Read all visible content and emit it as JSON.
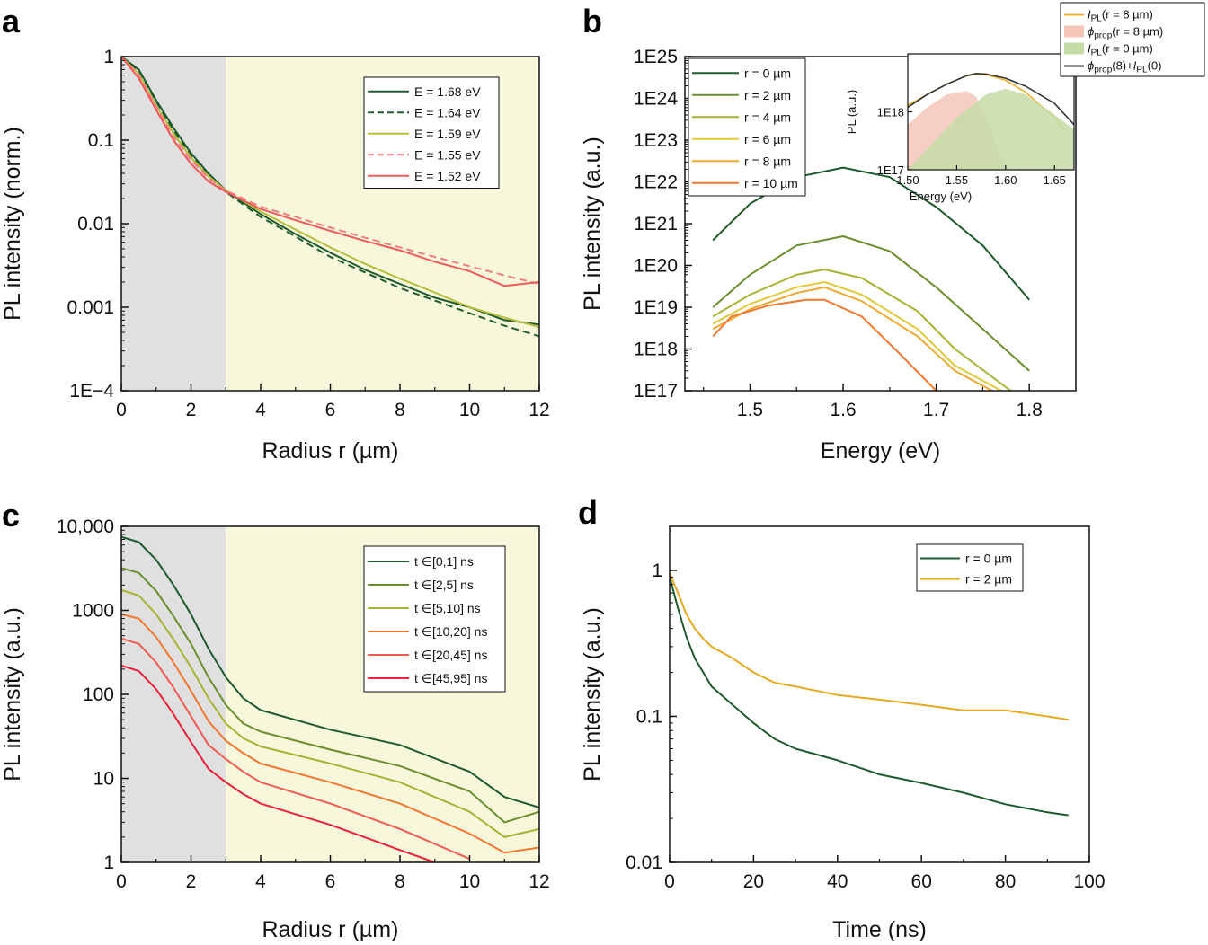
{
  "chart_data": [
    {
      "panel": "a",
      "type": "line",
      "xlabel": "Radius r (µm)",
      "ylabel": "PL intensity (norm.)",
      "yscale": "log",
      "xlim": [
        0,
        12
      ],
      "ylim": [
        0.0001,
        1
      ],
      "xticks": [
        "0",
        "2",
        "4",
        "6",
        "8",
        "10",
        "12"
      ],
      "yticks": [
        "1",
        "0.1",
        "0.01",
        "0.001",
        "1E−4"
      ],
      "shaded_regions": [
        {
          "from": 0,
          "to": 3,
          "color": "#e0e0e0"
        },
        {
          "from": 3,
          "to": 12,
          "color": "#f7f7dc"
        }
      ],
      "legend_position": "top-right",
      "series": [
        {
          "name": "E = 1.68 eV",
          "color": "#1e5a2c",
          "dash": "solid",
          "x": [
            0,
            0.5,
            1,
            1.5,
            2,
            2.5,
            3,
            4,
            5,
            6,
            7,
            8,
            9,
            10,
            11,
            12
          ],
          "y": [
            1,
            0.7,
            0.3,
            0.14,
            0.07,
            0.04,
            0.025,
            0.013,
            0.0075,
            0.0045,
            0.0028,
            0.0019,
            0.0013,
            0.001,
            0.0007,
            0.00062
          ]
        },
        {
          "name": "E = 1.64 eV",
          "color": "#1e5a2c",
          "dash": "dashed",
          "x": [
            0,
            0.5,
            1,
            1.5,
            2,
            2.5,
            3,
            4,
            5,
            6,
            7,
            8,
            9,
            10,
            11,
            12
          ],
          "y": [
            1,
            0.68,
            0.29,
            0.13,
            0.067,
            0.038,
            0.024,
            0.012,
            0.007,
            0.004,
            0.0026,
            0.0017,
            0.0012,
            0.00085,
            0.0006,
            0.00045
          ]
        },
        {
          "name": "E = 1.59 eV",
          "color": "#b7bd3c",
          "dash": "solid",
          "x": [
            0,
            0.5,
            1,
            1.5,
            2,
            2.5,
            3,
            4,
            5,
            6,
            7,
            8,
            9,
            10,
            11,
            12
          ],
          "y": [
            1,
            0.62,
            0.26,
            0.12,
            0.062,
            0.037,
            0.025,
            0.014,
            0.0085,
            0.0052,
            0.0033,
            0.0022,
            0.0015,
            0.001,
            0.00075,
            0.00058
          ]
        },
        {
          "name": "E = 1.55 eV",
          "color": "#f08080",
          "dash": "dashed",
          "x": [
            0,
            0.5,
            1,
            1.5,
            2,
            2.5,
            3,
            4,
            5,
            6,
            7,
            8,
            9,
            10,
            11,
            12
          ],
          "y": [
            1,
            0.6,
            0.25,
            0.11,
            0.058,
            0.035,
            0.025,
            0.016,
            0.012,
            0.009,
            0.0068,
            0.0052,
            0.004,
            0.0031,
            0.0024,
            0.0019
          ]
        },
        {
          "name": "E = 1.52 eV",
          "color": "#f05a5a",
          "dash": "solid",
          "x": [
            0,
            0.5,
            1,
            1.5,
            2,
            2.5,
            3,
            4,
            5,
            6,
            7,
            8,
            9,
            10,
            11,
            12
          ],
          "y": [
            1,
            0.55,
            0.23,
            0.1,
            0.052,
            0.032,
            0.024,
            0.015,
            0.011,
            0.0082,
            0.0062,
            0.0048,
            0.0035,
            0.0027,
            0.0018,
            0.002
          ]
        }
      ]
    },
    {
      "panel": "b",
      "type": "line",
      "xlabel": "Energy (eV)",
      "ylabel": "PL intensity (a.u.)",
      "yscale": "log",
      "xlim": [
        1.43,
        1.85
      ],
      "ylim": [
        1e+17,
        1e+25
      ],
      "xticks": [
        "1.5",
        "1.6",
        "1.7",
        "1.8"
      ],
      "yticks": [
        "1E25",
        "1E24",
        "1E23",
        "1E22",
        "1E21",
        "1E20",
        "1E19",
        "1E18",
        "1E17"
      ],
      "legend_position": "top-left",
      "series": [
        {
          "name": "r = 0 µm",
          "color": "#1e5a2c",
          "x": [
            1.46,
            1.5,
            1.55,
            1.6,
            1.65,
            1.7,
            1.75,
            1.8
          ],
          "y": [
            4e+20,
            3e+21,
            1.3e+22,
            2.2e+22,
            1.3e+22,
            2.5e+21,
            3e+20,
            1.5e+19
          ]
        },
        {
          "name": "r = 2 µm",
          "color": "#6b8e2e",
          "x": [
            1.46,
            1.5,
            1.55,
            1.6,
            1.65,
            1.7,
            1.75,
            1.8
          ],
          "y": [
            1e+19,
            6e+19,
            3e+20,
            5e+20,
            2.2e+20,
            3e+19,
            3e+18,
            3e+17
          ]
        },
        {
          "name": "r = 4 µm",
          "color": "#a8b232",
          "x": [
            1.46,
            1.5,
            1.55,
            1.58,
            1.62,
            1.68,
            1.72,
            1.78
          ],
          "y": [
            6e+18,
            2e+19,
            6e+19,
            8e+19,
            5e+19,
            8e+18,
            1e+18,
            1e+17
          ]
        },
        {
          "name": "r = 6 µm",
          "color": "#e2c83a",
          "x": [
            1.46,
            1.5,
            1.55,
            1.58,
            1.62,
            1.68,
            1.72,
            1.77
          ],
          "y": [
            4e+18,
            1.2e+19,
            3e+19,
            4e+19,
            2e+19,
            3e+18,
            4e+17,
            1e+17
          ]
        },
        {
          "name": "r = 8 µm",
          "color": "#f0a830",
          "x": [
            1.46,
            1.5,
            1.55,
            1.58,
            1.62,
            1.68,
            1.72,
            1.76
          ],
          "y": [
            3e+18,
            9e+18,
            2.2e+19,
            3e+19,
            1.4e+19,
            2e+18,
            3e+17,
            1e+17
          ]
        },
        {
          "name": "r = 10 µm",
          "color": "#f07830",
          "x": [
            1.46,
            1.48,
            1.52,
            1.56,
            1.58,
            1.62,
            1.66,
            1.7
          ],
          "y": [
            2e+18,
            6e+18,
            1.1e+19,
            1.5e+19,
            1.5e+19,
            6e+18,
            8e+17,
            1e+17
          ]
        }
      ],
      "inset": {
        "xlabel": "Energy (eV)",
        "ylabel": "PL (a.u.)",
        "xlim": [
          1.5,
          1.67
        ],
        "ylim": [
          1e+17,
          1e+19
        ],
        "xticks": [
          "1.50",
          "1.55",
          "1.60",
          "1.65"
        ],
        "yticks": [
          "1E18",
          "1E17"
        ],
        "legend_position": "top-right",
        "series": [
          {
            "name": "I_PL(r = 8 µm)",
            "name_parts": {
              "main": "I",
              "sub": "PL",
              "rest": "(r = 8 µm)"
            },
            "color": "#f0b030",
            "kind": "line",
            "x": [
              1.5,
              1.52,
              1.54,
              1.56,
              1.57,
              1.58,
              1.6,
              1.62,
              1.65,
              1.66
            ],
            "y": [
              1.3e+18,
              2e+18,
              3e+18,
              4.2e+18,
              4.5e+18,
              4.4e+18,
              3.5e+18,
              2.2e+18,
              8e+17,
              5e+17
            ]
          },
          {
            "name": "ϕ_prop(r = 8 µm)",
            "name_parts": {
              "main": "ϕ",
              "sub": "prop",
              "rest": "(r = 8 µm)"
            },
            "color": "#f4c6b8",
            "kind": "area",
            "x": [
              1.5,
              1.52,
              1.54,
              1.56,
              1.57,
              1.58,
              1.6
            ],
            "y": [
              6e+17,
              1.2e+18,
              2e+18,
              2.3e+18,
              1.8e+18,
              8e+17,
              1e+17
            ]
          },
          {
            "name": "I_PL(r = 0 µm)",
            "name_parts": {
              "main": "I",
              "sub": "PL",
              "rest": "(r = 0 µm)"
            },
            "color": "#c6dca8",
            "kind": "area",
            "x": [
              1.5,
              1.55,
              1.58,
              1.6,
              1.62,
              1.65,
              1.67
            ],
            "y": [
              1e+17,
              8e+17,
              2e+18,
              2.5e+18,
              2e+18,
              9e+17,
              5e+17
            ]
          },
          {
            "name": "ϕ_prop(8)+I_PL(0)",
            "name_parts": {
              "main": "ϕ",
              "sub": "prop",
              "rest": "(8)+",
              "main2": "I",
              "sub2": "PL",
              "rest2": "(0)"
            },
            "color": "#333333",
            "kind": "line",
            "x": [
              1.5,
              1.52,
              1.54,
              1.56,
              1.57,
              1.58,
              1.6,
              1.62,
              1.65,
              1.67
            ],
            "y": [
              1.2e+18,
              2e+18,
              3e+18,
              4.2e+18,
              4.6e+18,
              4.5e+18,
              3.8e+18,
              2.8e+18,
              1.4e+18,
              6e+17
            ]
          }
        ]
      }
    },
    {
      "panel": "c",
      "type": "line",
      "xlabel": "Radius r (µm)",
      "ylabel": "PL intensity (a.u.)",
      "yscale": "log",
      "xlim": [
        0,
        12
      ],
      "ylim": [
        1,
        10000
      ],
      "xticks": [
        "0",
        "2",
        "4",
        "6",
        "8",
        "10",
        "12"
      ],
      "yticks": [
        "10,000",
        "1000",
        "100",
        "10",
        "1"
      ],
      "shaded_regions": [
        {
          "from": 0,
          "to": 3,
          "color": "#e0e0e0"
        },
        {
          "from": 3,
          "to": 12,
          "color": "#f7f7dc"
        }
      ],
      "legend_position": "top-right",
      "series": [
        {
          "name": "t ∈[0,1] ns",
          "color": "#1e5a2c",
          "x": [
            0,
            0.5,
            1,
            1.5,
            2,
            2.5,
            3,
            3.5,
            4,
            6,
            8,
            10,
            11,
            12
          ],
          "y": [
            7500,
            6500,
            4000,
            2000,
            900,
            350,
            160,
            90,
            65,
            38,
            25,
            12,
            6,
            4.5
          ]
        },
        {
          "name": "t ∈[2,5] ns",
          "color": "#6b8e2e",
          "x": [
            0,
            0.5,
            1,
            1.5,
            2,
            2.5,
            3,
            3.5,
            4,
            6,
            8,
            10,
            11,
            12
          ],
          "y": [
            3200,
            2800,
            1700,
            850,
            400,
            160,
            75,
            45,
            36,
            22,
            14,
            7,
            3,
            4
          ]
        },
        {
          "name": "t ∈[5,10] ns",
          "color": "#a8b232",
          "x": [
            0,
            0.5,
            1,
            1.5,
            2,
            2.5,
            3,
            3.5,
            4,
            6,
            8,
            10,
            11,
            12
          ],
          "y": [
            1750,
            1500,
            900,
            450,
            210,
            90,
            45,
            30,
            24,
            15,
            9,
            4,
            2,
            2.5
          ]
        },
        {
          "name": "t ∈[10,20] ns",
          "color": "#f07830",
          "x": [
            0,
            0.5,
            1,
            1.5,
            2,
            2.5,
            3,
            3.5,
            4,
            6,
            8,
            10,
            11,
            12
          ],
          "y": [
            900,
            800,
            480,
            240,
            110,
            48,
            28,
            20,
            15,
            9,
            5,
            2.2,
            1.3,
            1.5
          ]
        },
        {
          "name": "t ∈[20,45] ns",
          "color": "#f05a50",
          "x": [
            0,
            0.5,
            1,
            1.5,
            2,
            2.5,
            3,
            3.5,
            4,
            6,
            8,
            10
          ],
          "y": [
            460,
            400,
            240,
            120,
            55,
            25,
            17,
            12,
            9,
            5,
            2.5,
            1.1
          ]
        },
        {
          "name": "t ∈[45,95] ns",
          "color": "#e8203a",
          "x": [
            0,
            0.5,
            1,
            1.5,
            2,
            2.5,
            3,
            3.5,
            4,
            6,
            8,
            9
          ],
          "y": [
            220,
            190,
            115,
            58,
            27,
            13,
            9,
            6.5,
            5,
            2.8,
            1.4,
            1
          ]
        }
      ]
    },
    {
      "panel": "d",
      "type": "line",
      "xlabel": "Time (ns)",
      "ylabel": "PL intensity (a.u.)",
      "yscale": "log",
      "xlim": [
        0,
        100
      ],
      "ylim": [
        0.01,
        2
      ],
      "xticks": [
        "0",
        "20",
        "40",
        "60",
        "80",
        "100"
      ],
      "yticks": [
        "1",
        "0.1",
        "0.01"
      ],
      "legend_position": "top-right",
      "series": [
        {
          "name": "r = 0 µm",
          "color": "#1e5a2c",
          "x": [
            0,
            2,
            4,
            6,
            8,
            10,
            15,
            20,
            25,
            30,
            40,
            50,
            60,
            70,
            80,
            90,
            95
          ],
          "y": [
            0.9,
            0.55,
            0.35,
            0.25,
            0.2,
            0.16,
            0.12,
            0.09,
            0.07,
            0.06,
            0.05,
            0.04,
            0.035,
            0.03,
            0.025,
            0.022,
            0.021
          ]
        },
        {
          "name": "r = 2 µm",
          "color": "#e8a820",
          "x": [
            0,
            2,
            4,
            6,
            8,
            10,
            15,
            20,
            25,
            30,
            40,
            50,
            60,
            70,
            80,
            90,
            95
          ],
          "y": [
            0.95,
            0.7,
            0.5,
            0.4,
            0.34,
            0.3,
            0.25,
            0.2,
            0.17,
            0.16,
            0.14,
            0.13,
            0.12,
            0.11,
            0.11,
            0.1,
            0.095
          ]
        }
      ]
    }
  ]
}
